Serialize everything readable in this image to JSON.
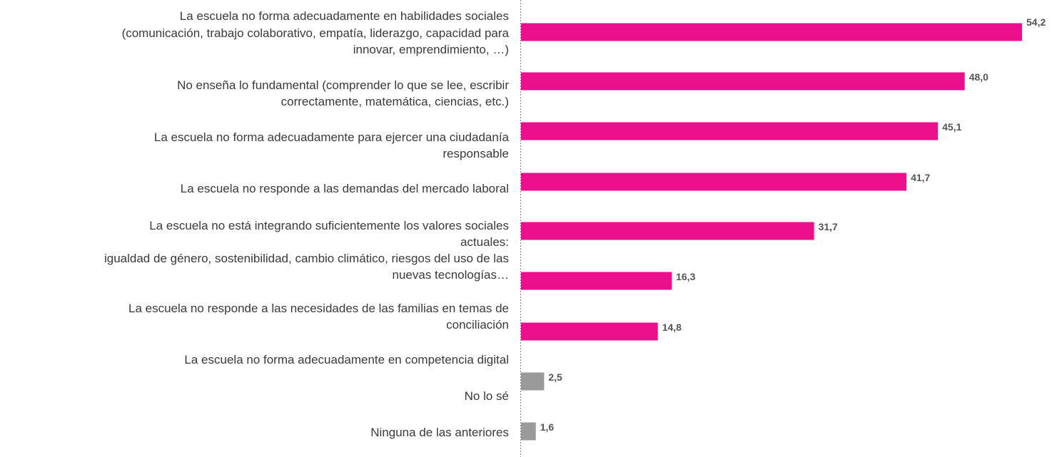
{
  "chart_data": {
    "type": "bar",
    "orientation": "horizontal",
    "xlim": [
      0,
      54.2
    ],
    "grid": false,
    "legend": "none",
    "categories": [
      [
        "La escuela no forma adecuadamente en habilidades sociales",
        "(comunicación, trabajo colaborativo, empatía, liderazgo, capacidad para",
        "innovar, emprendimiento, …)"
      ],
      [
        "No enseña lo fundamental (comprender lo que se lee, escribir",
        "correctamente, matemática, ciencias, etc.)"
      ],
      [
        "La escuela no forma adecuadamente para ejercer una ciudadanía",
        "responsable"
      ],
      [
        "La escuela no responde a las demandas del mercado laboral"
      ],
      [
        "La escuela no está integrando suficientemente los valores sociales",
        "actuales:",
        "igualdad de género, sostenibilidad, cambio climático, riesgos del uso de las",
        "nuevas tecnologías…"
      ],
      [
        "La escuela no responde a las necesidades de las familias en temas de",
        "conciliación"
      ],
      [
        "La escuela no forma adecuadamente en competencia digital"
      ],
      [
        "No lo sé"
      ],
      [
        "Ninguna de las anteriores"
      ]
    ],
    "values": [
      54.2,
      48.0,
      45.1,
      41.7,
      31.7,
      16.3,
      14.8,
      2.5,
      1.6
    ],
    "value_labels": [
      "54,2",
      "48,0",
      "45,1",
      "41,7",
      "31,7",
      "16,3",
      "14,8",
      "2,5",
      "1,6"
    ],
    "colors": {
      "highlight": "#ec0f8c",
      "neutral": "#9a9a9a",
      "axis": "#888888"
    }
  }
}
